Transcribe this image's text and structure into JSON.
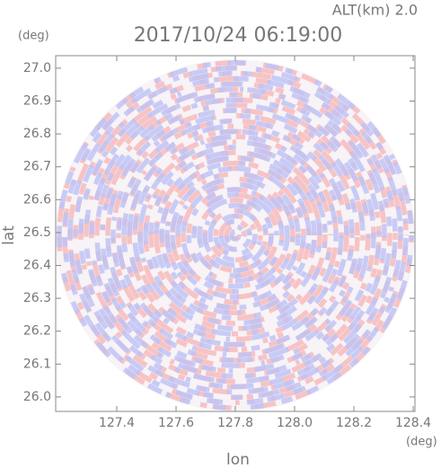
{
  "chart_data": {
    "type": "image",
    "title": "2017/10/24 06:19:00",
    "subtitle": "ALT(km) 2.0",
    "x_label": "lon",
    "y_label": "lat",
    "x_unit": "(deg)",
    "y_unit": "(deg)",
    "xlim": [
      127.194,
      128.406
    ],
    "ylim": [
      25.956,
      27.038
    ],
    "xticks": [
      127.4,
      127.6,
      127.8,
      {
        "value": 128,
        "label": "128.0"
      },
      128.2,
      128.4
    ],
    "yticks": [
      {
        "value": 26,
        "label": "26.0"
      },
      26.1,
      26.2,
      26.3,
      26.4,
      26.5,
      26.6,
      26.7,
      26.8,
      26.9,
      {
        "value": 27,
        "label": "27.0"
      }
    ]
  }
}
